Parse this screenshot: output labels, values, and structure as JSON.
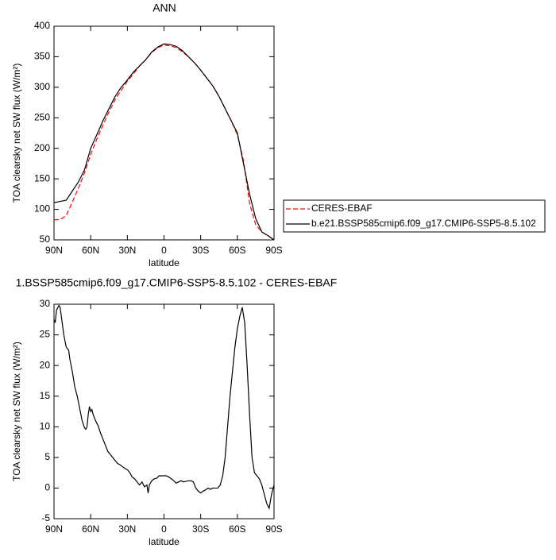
{
  "chart_data": [
    {
      "type": "line",
      "title": "ANN",
      "xlabel": "latitude",
      "ylabel": "TOA clearsky net SW flux (W/m²)",
      "x": [
        90,
        85,
        80,
        75,
        70,
        65,
        60,
        55,
        50,
        45,
        40,
        35,
        30,
        25,
        20,
        15,
        10,
        5,
        0,
        -5,
        -10,
        -15,
        -20,
        -25,
        -30,
        -35,
        -40,
        -45,
        -50,
        -55,
        -60,
        -65,
        -70,
        -75,
        -80,
        -85,
        -90
      ],
      "series": [
        {
          "name": "CERES-EBAF",
          "color": "#ff0000",
          "linestyle": "dashed",
          "values": [
            83,
            83,
            90,
            112,
            135,
            160,
            190,
            215,
            238,
            260,
            280,
            295,
            310,
            322,
            335,
            345,
            357,
            365,
            369,
            368,
            365,
            358,
            350,
            340,
            328,
            315,
            302,
            285,
            265,
            245,
            222,
            180,
            110,
            75,
            63,
            57,
            50
          ]
        },
        {
          "name": "b.e21.BSSP585cmip6.f09_g17.CMIP6-SSP5-8.5.102",
          "color": "#000000",
          "linestyle": "solid",
          "values": [
            111,
            113,
            115,
            130,
            145,
            165,
            200,
            222,
            245,
            265,
            285,
            300,
            312,
            325,
            335,
            345,
            358,
            366,
            371,
            370,
            367,
            360,
            350,
            340,
            328,
            315,
            302,
            285,
            265,
            245,
            225,
            175,
            125,
            85,
            63,
            57,
            50
          ]
        }
      ],
      "xlim": [
        90,
        -90
      ],
      "ylim": [
        50,
        400
      ],
      "xticks": [
        {
          "value": 90,
          "label": "90N"
        },
        {
          "value": 60,
          "label": "60N"
        },
        {
          "value": 30,
          "label": "30N"
        },
        0,
        {
          "value": -30,
          "label": "30S"
        },
        {
          "value": -60,
          "label": "60S"
        },
        {
          "value": -90,
          "label": "90S"
        }
      ],
      "yticks": [
        50,
        100,
        150,
        200,
        250,
        300,
        350,
        400
      ],
      "legend": "right"
    },
    {
      "type": "line",
      "title": "1.BSSP585cmip6.f09_g17.CMIP6-SSP5-8.5.102 - CERES-EBAF",
      "xlabel": "latitude",
      "ylabel": "TOA clearsky net SW flux (W/m²)",
      "x": [
        90,
        89,
        88,
        86,
        85,
        84,
        82,
        80,
        78,
        77,
        75,
        73,
        71,
        69,
        67,
        65,
        64,
        63,
        62,
        61,
        60,
        59,
        58,
        56,
        54,
        52,
        50,
        48,
        46,
        44,
        42,
        40,
        38,
        36,
        34,
        32,
        30,
        28,
        26,
        24,
        22,
        20,
        18,
        16,
        14,
        13,
        12,
        10,
        8,
        6,
        4,
        2,
        0,
        -2,
        -4,
        -6,
        -8,
        -10,
        -12,
        -14,
        -16,
        -18,
        -20,
        -22,
        -24,
        -26,
        -28,
        -30,
        -32,
        -34,
        -36,
        -38,
        -40,
        -42,
        -44,
        -46,
        -48,
        -50,
        -52,
        -54,
        -56,
        -58,
        -60,
        -62,
        -64,
        -66,
        -68,
        -70,
        -72,
        -74,
        -76,
        -78,
        -80,
        -82,
        -84,
        -86,
        -88,
        -90
      ],
      "series": [
        {
          "name": null,
          "color": "#000000",
          "linestyle": "solid",
          "values": [
            27.5,
            27,
            29,
            29.8,
            29.5,
            28,
            25,
            23,
            22.5,
            21,
            19,
            16.5,
            15,
            13,
            11,
            9.8,
            9.6,
            10,
            12,
            13.3,
            12.5,
            12.8,
            12,
            11,
            10.2,
            9,
            8,
            7,
            6,
            5.5,
            5,
            4.5,
            4,
            3.8,
            3.5,
            3.2,
            3,
            2.5,
            1.8,
            1.5,
            1,
            0.5,
            1,
            0.2,
            0.5,
            -0.8,
            0.5,
            1.2,
            1.5,
            1.6,
            2,
            2,
            2,
            2,
            1.8,
            1.5,
            1.2,
            0.8,
            1,
            1.2,
            1,
            1.1,
            1.2,
            1.2,
            1,
            0,
            -0.5,
            -0.8,
            -0.5,
            -0.3,
            0,
            -0.2,
            0,
            0,
            0,
            0.5,
            2,
            5,
            10,
            15,
            19,
            23,
            26,
            28,
            29.5,
            27,
            20,
            12,
            5,
            2.5,
            2,
            1.5,
            0.5,
            -1,
            -2.5,
            -3.3,
            -1,
            0.5
          ]
        }
      ],
      "xlim": [
        90,
        -90
      ],
      "ylim": [
        -5,
        30
      ],
      "xticks": [
        {
          "value": 90,
          "label": "90N"
        },
        {
          "value": 60,
          "label": "60N"
        },
        {
          "value": 30,
          "label": "30N"
        },
        0,
        {
          "value": -30,
          "label": "30S"
        },
        {
          "value": -60,
          "label": "60S"
        },
        {
          "value": -90,
          "label": "90S"
        }
      ],
      "yticks": [
        -5,
        0,
        5,
        10,
        15,
        20,
        25,
        30
      ]
    }
  ]
}
